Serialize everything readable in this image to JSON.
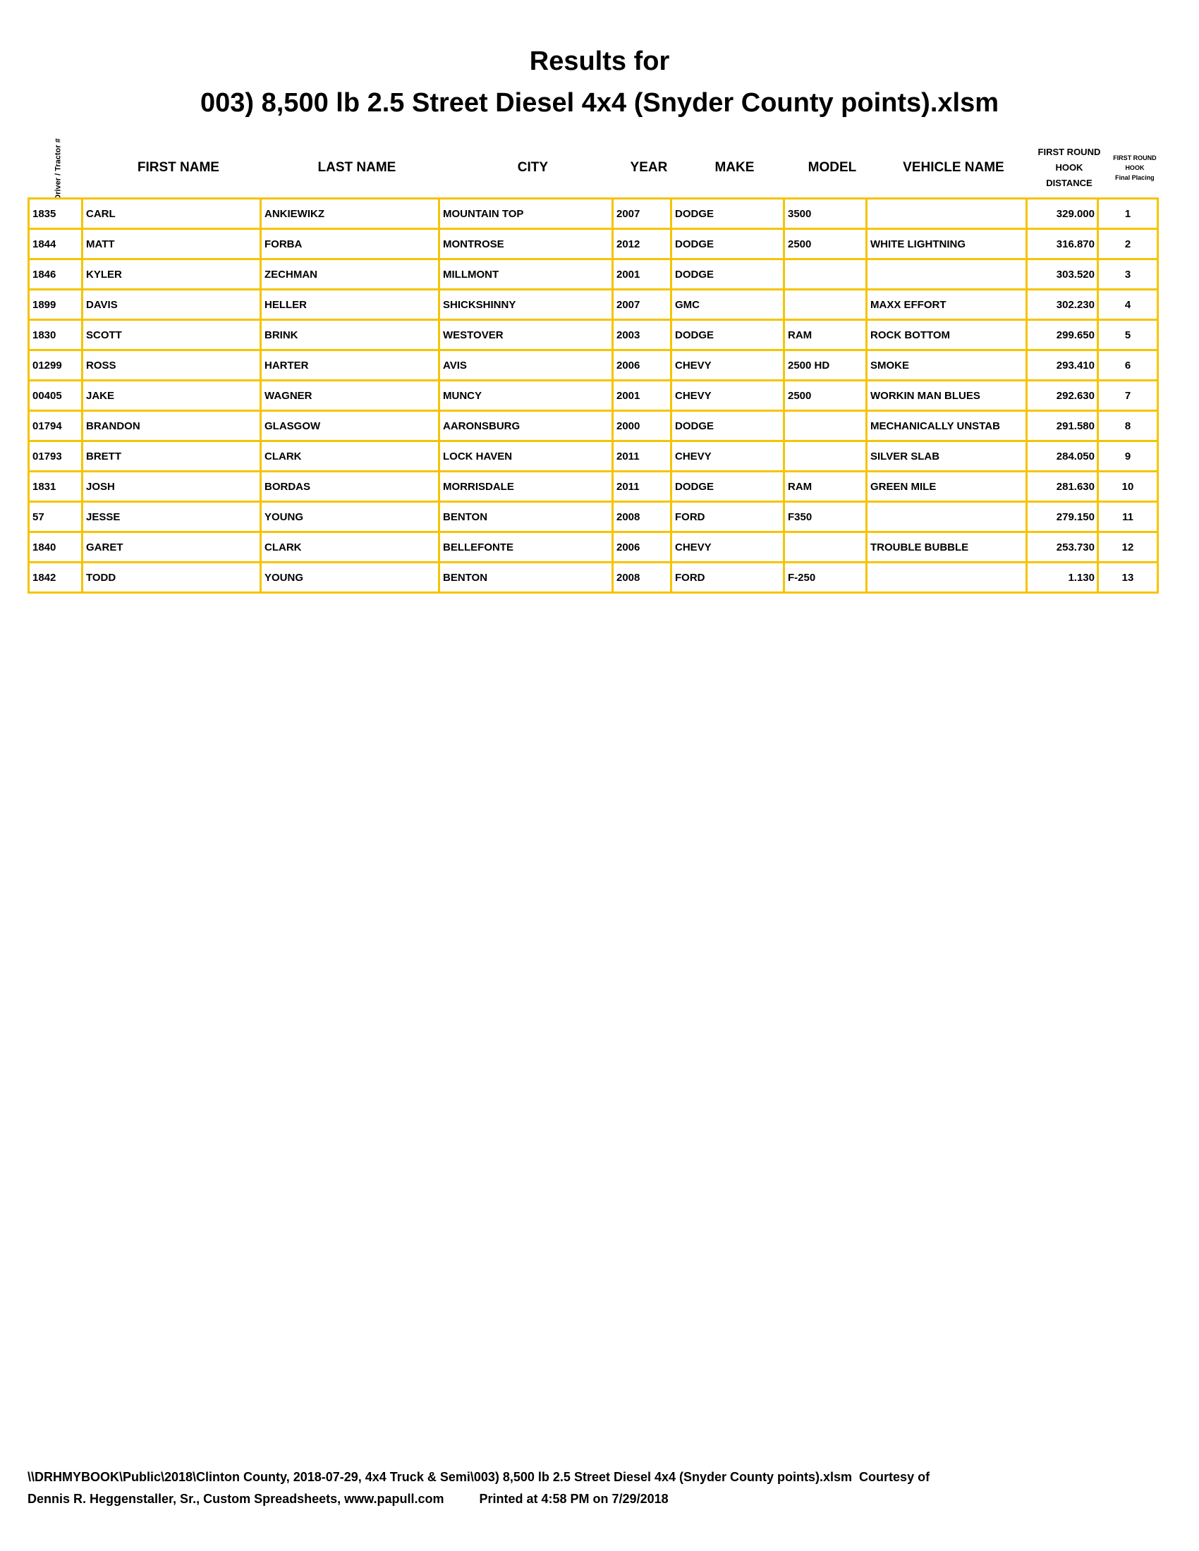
{
  "title_line1": "Results for",
  "title_line2": "003) 8,500 lb 2.5 Street Diesel 4x4 (Snyder County points).xlsm",
  "headers": {
    "driver": "Driver / Tractor #",
    "first_name": "FIRST NAME",
    "last_name": "LAST NAME",
    "city": "CITY",
    "year": "YEAR",
    "make": "MAKE",
    "model": "MODEL",
    "vehicle_name": "VEHICLE NAME",
    "distance": "FIRST ROUND HOOK DISTANCE",
    "placing_1": "FIRST ROUND HOOK",
    "placing_2": "Final Placing"
  },
  "border_color": "#F5C400",
  "rows": [
    [
      "1835",
      "CARL",
      "ANKIEWIKZ",
      "MOUNTAIN TOP",
      "2007",
      "DODGE",
      "3500",
      "",
      "329.000",
      "1"
    ],
    [
      "1844",
      "MATT",
      "FORBA",
      "MONTROSE",
      "2012",
      "DODGE",
      "2500",
      "WHITE LIGHTNING",
      "316.870",
      "2"
    ],
    [
      "1846",
      "KYLER",
      "ZECHMAN",
      "MILLMONT",
      "2001",
      "DODGE",
      "",
      "",
      "303.520",
      "3"
    ],
    [
      "1899",
      "DAVIS",
      "HELLER",
      "SHICKSHINNY",
      "2007",
      "GMC",
      "",
      "MAXX EFFORT",
      "302.230",
      "4"
    ],
    [
      "1830",
      "SCOTT",
      "BRINK",
      "WESTOVER",
      "2003",
      "DODGE",
      "RAM",
      "ROCK BOTTOM",
      "299.650",
      "5"
    ],
    [
      "01299",
      "ROSS",
      "HARTER",
      "AVIS",
      "2006",
      "CHEVY",
      "2500 HD",
      "SMOKE",
      "293.410",
      "6"
    ],
    [
      "00405",
      "JAKE",
      "WAGNER",
      "MUNCY",
      "2001",
      "CHEVY",
      "2500",
      "WORKIN MAN BLUES",
      "292.630",
      "7"
    ],
    [
      "01794",
      "BRANDON",
      "GLASGOW",
      "AARONSBURG",
      "2000",
      "DODGE",
      "",
      "MECHANICALLY UNSTAB",
      "291.580",
      "8"
    ],
    [
      "01793",
      "BRETT",
      "CLARK",
      "LOCK HAVEN",
      "2011",
      "CHEVY",
      "",
      "SILVER SLAB",
      "284.050",
      "9"
    ],
    [
      "1831",
      "JOSH",
      "BORDAS",
      "MORRISDALE",
      "2011",
      "DODGE",
      "RAM",
      "GREEN MILE",
      "281.630",
      "10"
    ],
    [
      "57",
      "JESSE",
      "YOUNG",
      "BENTON",
      "2008",
      "FORD",
      "F350",
      "",
      "279.150",
      "11"
    ],
    [
      "1840",
      "GARET",
      "CLARK",
      "BELLEFONTE",
      "2006",
      "CHEVY",
      "",
      "TROUBLE BUBBLE",
      "253.730",
      "12"
    ],
    [
      "1842",
      "TODD",
      "YOUNG",
      "BENTON",
      "2008",
      "FORD",
      "F-250",
      "",
      "1.130",
      "13"
    ]
  ],
  "footer_line1": "\\\\DRHMYBOOK\\Public\\2018\\Clinton County, 2018-07-29, 4x4 Truck & Semi\\003) 8,500 lb 2.5 Street Diesel 4x4 (Snyder County points).xlsm  Courtesy of",
  "footer_line2_left": "Dennis R. Heggenstaller, Sr., Custom Spreadsheets, www.papull.com",
  "footer_line2_right": "Printed at 4:58 PM on 7/29/2018"
}
